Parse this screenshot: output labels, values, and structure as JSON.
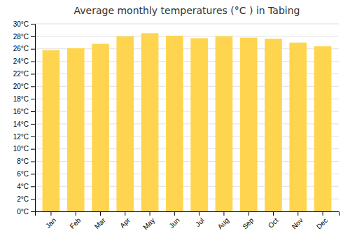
{
  "chart_data": {
    "type": "bar",
    "title": "Average monthly temperatures (°C ) in Tabing",
    "categories": [
      "Jan",
      "Feb",
      "Mar",
      "Apr",
      "May",
      "Jun",
      "Jul",
      "Aug",
      "Sep",
      "Oct",
      "Nov",
      "Dec"
    ],
    "values": [
      25.8,
      26.1,
      26.8,
      28.0,
      28.5,
      28.1,
      27.7,
      28.0,
      27.8,
      27.6,
      27.0,
      26.4
    ],
    "color": "#FFD54F",
    "ylim": [
      0,
      30
    ],
    "yticks": [
      {
        "value": 0,
        "label": "0°C"
      },
      {
        "value": 2,
        "label": "2°C"
      },
      {
        "value": 4,
        "label": "4°C"
      },
      {
        "value": 6,
        "label": "6°C"
      },
      {
        "value": 8,
        "label": "8°C"
      },
      {
        "value": 10,
        "label": "10°C"
      },
      {
        "value": 12,
        "label": "12°C"
      },
      {
        "value": 14,
        "label": "14°C"
      },
      {
        "value": 16,
        "label": "16°C"
      },
      {
        "value": 18,
        "label": "18°C"
      },
      {
        "value": 20,
        "label": "20°C"
      },
      {
        "value": 22,
        "label": "22°C"
      },
      {
        "value": 24,
        "label": "24°C"
      },
      {
        "value": 26,
        "label": "26°C"
      },
      {
        "value": 28,
        "label": "28°C"
      },
      {
        "value": 30,
        "label": "30°C"
      }
    ],
    "grid": true
  }
}
